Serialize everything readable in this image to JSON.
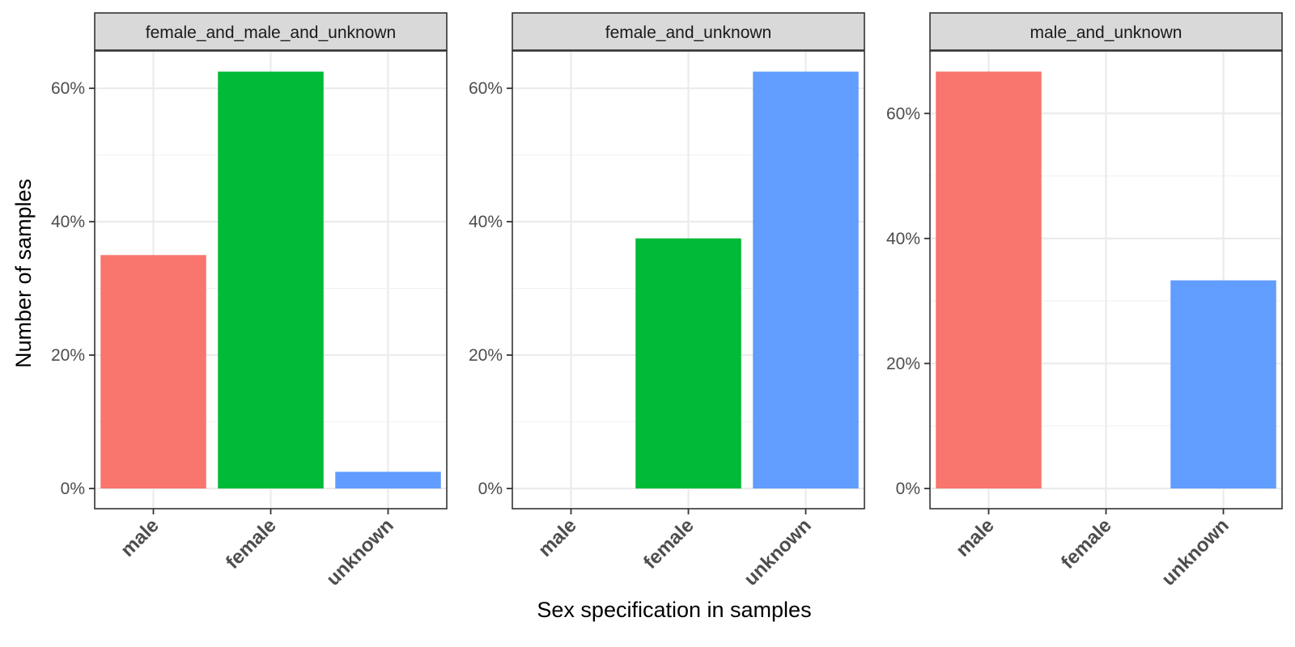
{
  "chart_data": {
    "type": "bar",
    "xlabel": "Sex specification in samples",
    "ylabel": "Number of samples",
    "categories": [
      "male",
      "female",
      "unknown"
    ],
    "colors": {
      "male": "#F8766D",
      "female": "#00BA38",
      "unknown": "#619CFF"
    },
    "grid": true,
    "legend": "none",
    "panels": [
      {
        "title": "female_and_male_and_unknown",
        "ylim": [
          0,
          65.6
        ],
        "yticks": [
          0,
          20,
          40,
          60
        ],
        "ytick_labels": [
          "0%",
          "20%",
          "40%",
          "60%"
        ],
        "values": [
          35.0,
          62.5,
          2.5
        ]
      },
      {
        "title": "female_and_unknown",
        "ylim": [
          0,
          65.6
        ],
        "yticks": [
          0,
          20,
          40,
          60
        ],
        "ytick_labels": [
          "0%",
          "20%",
          "40%",
          "60%"
        ],
        "values": [
          0,
          37.5,
          62.5
        ]
      },
      {
        "title": "male_and_unknown",
        "ylim": [
          0,
          70.0
        ],
        "yticks": [
          0,
          20,
          40,
          60
        ],
        "ytick_labels": [
          "0%",
          "20%",
          "40%",
          "60%"
        ],
        "values": [
          66.7,
          0,
          33.3
        ]
      }
    ]
  }
}
